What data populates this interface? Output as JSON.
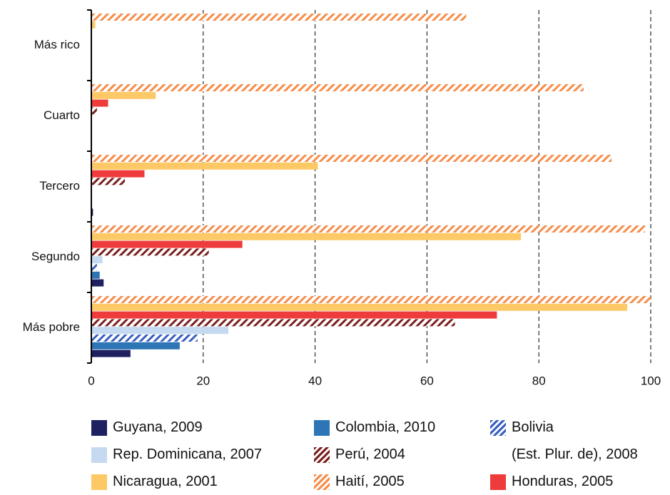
{
  "chart_data": {
    "type": "bar",
    "orientation": "horizontal",
    "categories": [
      "Más rico",
      "Cuarto",
      "Tercero",
      "Segundo",
      "Más pobre"
    ],
    "series": [
      {
        "name": "Guyana, 2009",
        "color": "#1f2060",
        "hatch": false,
        "values": [
          0,
          0,
          0.3,
          2.2,
          7
        ]
      },
      {
        "name": "Colombia, 2010",
        "color": "#2e75b6",
        "hatch": false,
        "values": [
          0,
          0,
          0,
          1.5,
          15.8
        ]
      },
      {
        "name": "Bolivia\n(Est. Plur. de), 2008",
        "color": "#3a5fbf",
        "hatch": true,
        "values": [
          0,
          0,
          0,
          1,
          19
        ]
      },
      {
        "name": "Rep. Dominicana, 2007",
        "color": "#c5d9f1",
        "hatch": false,
        "values": [
          0,
          0,
          0,
          2,
          24.5
        ]
      },
      {
        "name": "Perú, 2004",
        "color": "#7b1f1f",
        "hatch": true,
        "values": [
          0,
          1,
          6,
          21,
          65
        ]
      },
      {
        "name": "Nicaragua, 2001",
        "color": "#fdc967",
        "hatch": false,
        "values": [
          0.7,
          11.5,
          40.5,
          76.8,
          95.8
        ]
      },
      {
        "name": "Haití, 2005",
        "color": "#f58d4a",
        "hatch": true,
        "values": [
          67,
          88,
          93,
          99,
          100
        ]
      },
      {
        "name": "Honduras, 2005",
        "color": "#ee3b3b",
        "hatch": false,
        "values": [
          0,
          3,
          9.5,
          27,
          72.5
        ]
      }
    ],
    "xlim": [
      0,
      100
    ],
    "xticks": [
      0,
      20,
      40,
      60,
      80,
      100
    ],
    "grid": true
  }
}
